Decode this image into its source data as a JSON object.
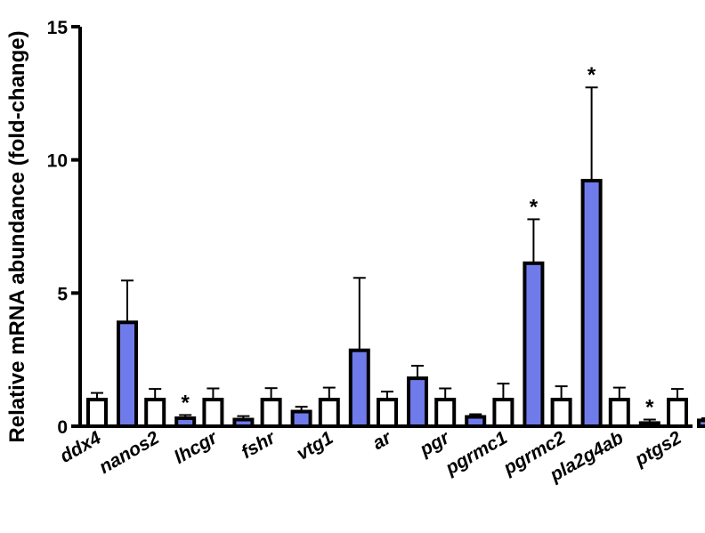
{
  "chart_data": {
    "type": "bar",
    "ylabel": "Relative mRNA abundance (fold-change)",
    "ylim": [
      0,
      15
    ],
    "yticks": [
      0,
      5,
      10,
      15
    ],
    "categories": [
      "ddx4",
      "nanos2",
      "lhcgr",
      "fshr",
      "vtg1",
      "ar",
      "pgr",
      "pgrmc1",
      "pgrmc2",
      "pla2g4ab",
      "ptgs2"
    ],
    "series": [
      {
        "color": "#ffffff",
        "values": [
          1.0,
          1.0,
          1.0,
          1.0,
          1.0,
          1.0,
          1.0,
          1.0,
          1.0,
          1.0,
          1.0
        ],
        "errors": [
          0.25,
          0.4,
          0.42,
          0.43,
          0.45,
          0.3,
          0.42,
          0.6,
          0.5,
          0.45,
          0.4
        ]
      },
      {
        "color": "#6f7bea",
        "values": [
          3.9,
          0.3,
          0.25,
          0.55,
          2.85,
          1.8,
          0.35,
          6.12,
          9.22,
          0.12,
          0.22
        ],
        "errors": [
          1.57,
          0.12,
          0.13,
          0.18,
          2.72,
          0.47,
          0.1,
          1.65,
          3.5,
          0.13,
          0.08
        ],
        "significant": [
          false,
          true,
          false,
          false,
          false,
          false,
          false,
          true,
          true,
          true,
          false
        ]
      }
    ],
    "significance_marker": "*",
    "grid": false
  }
}
